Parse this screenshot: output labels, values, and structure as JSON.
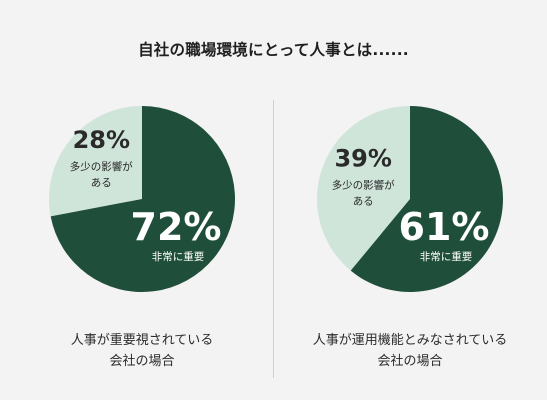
{
  "title": "自社の職場環境にとって人事とは......",
  "colors": {
    "major": "#1f4e3a",
    "minor": "#cfe5da",
    "bg": "#f3f3f3"
  },
  "chart_data": [
    {
      "type": "pie",
      "slices": [
        {
          "label": "多少の影響がある",
          "label_lines": [
            "多少の影響が",
            "ある"
          ],
          "value": 28,
          "value_label": "28%"
        },
        {
          "label": "非常に重要",
          "label_lines": [
            "非常に重要"
          ],
          "value": 72,
          "value_label": "72%"
        }
      ],
      "caption_lines": [
        "人事が重要視されている",
        "会社の場合"
      ]
    },
    {
      "type": "pie",
      "slices": [
        {
          "label": "多少の影響がある",
          "label_lines": [
            "多少の影響が",
            "ある"
          ],
          "value": 39,
          "value_label": "39%"
        },
        {
          "label": "非常に重要",
          "label_lines": [
            "非常に重要"
          ],
          "value": 61,
          "value_label": "61%"
        }
      ],
      "caption_lines": [
        "人事が運用機能とみなされている",
        "会社の場合"
      ]
    }
  ]
}
